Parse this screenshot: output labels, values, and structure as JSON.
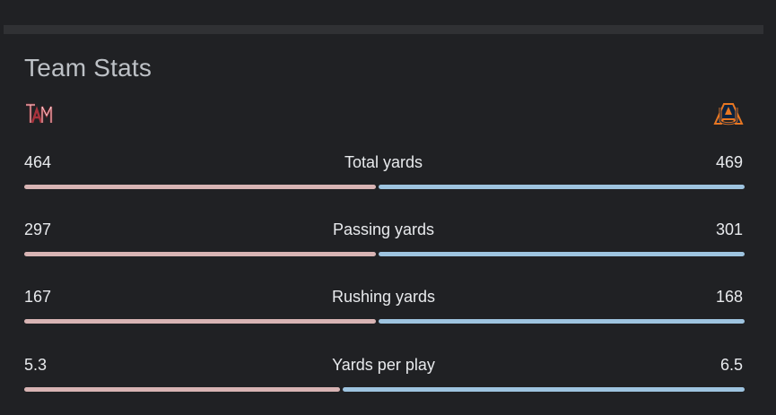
{
  "header": {
    "title": "Team Stats"
  },
  "teams": {
    "left": {
      "logo": "texas-am-logo",
      "color": "#500000"
    },
    "right": {
      "logo": "auburn-logo",
      "color": "#0c2340"
    }
  },
  "colors": {
    "left_bar": "#d8b4b4",
    "right_bar": "#9ec4e0",
    "background": "#202124"
  },
  "stats": [
    {
      "label": "Total yards",
      "left": "464",
      "right": "469"
    },
    {
      "label": "Passing yards",
      "left": "297",
      "right": "301"
    },
    {
      "label": "Rushing yards",
      "left": "167",
      "right": "168"
    },
    {
      "label": "Yards per play",
      "left": "5.3",
      "right": "6.5"
    }
  ]
}
